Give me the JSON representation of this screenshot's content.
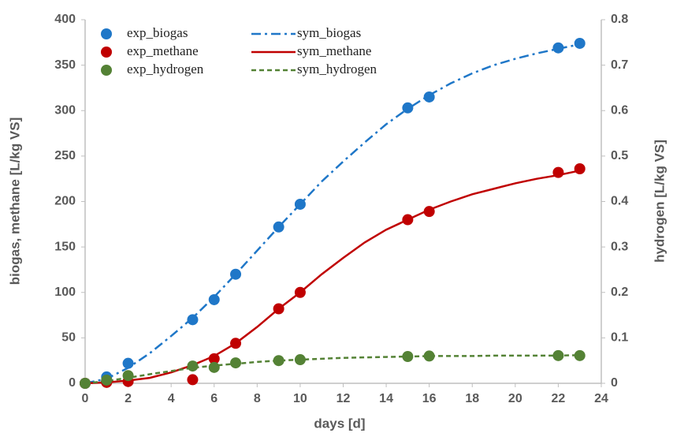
{
  "chart_data": {
    "type": "line",
    "x_label": "days [d]",
    "y_label": "biogas, methane [L/kg VS]",
    "y2_label": "hydrogen [L/kg VS]",
    "xlim": [
      0,
      24
    ],
    "xticks": [
      0,
      2,
      4,
      6,
      8,
      10,
      12,
      14,
      16,
      18,
      20,
      22,
      24
    ],
    "ylim": [
      0,
      400
    ],
    "yticks": [
      0,
      50,
      100,
      150,
      200,
      250,
      300,
      350,
      400
    ],
    "y2lim": [
      0,
      0.8
    ],
    "y2ticks": [
      0,
      0.1,
      0.2,
      0.3,
      0.4,
      0.5,
      0.6,
      0.7,
      0.8
    ],
    "legend": "upper left",
    "series": [
      {
        "name": "exp_biogas",
        "type": "scatter",
        "color": "#1f77c8",
        "x": [
          0,
          1,
          2,
          5,
          6,
          7,
          9,
          10,
          15,
          16,
          22,
          23
        ],
        "values": [
          0,
          7,
          22,
          70,
          92,
          120,
          172,
          197,
          303,
          315,
          369,
          374
        ]
      },
      {
        "name": "exp_methane",
        "type": "scatter",
        "color": "#c00000",
        "x": [
          0,
          1,
          2,
          5,
          6,
          7,
          9,
          10,
          15,
          16,
          22,
          23
        ],
        "values": [
          0,
          1,
          2,
          4,
          27,
          44,
          82,
          100,
          180,
          189,
          232,
          236
        ]
      },
      {
        "name": "exp_hydrogen",
        "type": "scatter",
        "color": "#548235",
        "axis": "y2",
        "x": [
          0,
          1,
          2,
          5,
          6,
          7,
          9,
          10,
          15,
          16,
          22,
          23
        ],
        "values": [
          0,
          0.007,
          0.017,
          0.038,
          0.035,
          0.045,
          0.05,
          0.052,
          0.059,
          0.06,
          0.061,
          0.061
        ]
      },
      {
        "name": "sym_biogas",
        "type": "line",
        "style": "dash-dot",
        "color": "#1f77c8",
        "x": [
          0,
          1,
          2,
          3,
          4,
          5,
          6,
          7,
          8,
          9,
          10,
          11,
          12,
          13,
          14,
          15,
          16,
          17,
          18,
          19,
          20,
          21,
          22,
          23
        ],
        "values": [
          0,
          5,
          17,
          33,
          52,
          72,
          95,
          120,
          146,
          172,
          197,
          222,
          244,
          265,
          285,
          302,
          317,
          330,
          341,
          350,
          357,
          363,
          368,
          373
        ]
      },
      {
        "name": "sym_methane",
        "type": "line",
        "style": "solid",
        "color": "#c00000",
        "x": [
          0,
          1,
          2,
          3,
          4,
          5,
          6,
          7,
          8,
          9,
          10,
          11,
          12,
          13,
          14,
          15,
          16,
          17,
          18,
          19,
          20,
          21,
          22,
          23
        ],
        "values": [
          0,
          1,
          3,
          6,
          12,
          20,
          30,
          44,
          62,
          82,
          100,
          120,
          138,
          155,
          169,
          180,
          191,
          200,
          208,
          214,
          220,
          225,
          229,
          234
        ]
      },
      {
        "name": "sym_hydrogen",
        "type": "line",
        "style": "dashed",
        "color": "#548235",
        "axis": "y2",
        "x": [
          0,
          1,
          2,
          3,
          4,
          5,
          6,
          7,
          8,
          9,
          10,
          11,
          12,
          13,
          14,
          15,
          16,
          17,
          18,
          19,
          20,
          21,
          22,
          23
        ],
        "values": [
          0,
          0.005,
          0.012,
          0.02,
          0.027,
          0.034,
          0.039,
          0.043,
          0.047,
          0.05,
          0.052,
          0.054,
          0.056,
          0.057,
          0.058,
          0.059,
          0.06,
          0.06,
          0.06,
          0.061,
          0.061,
          0.061,
          0.061,
          0.062
        ]
      }
    ]
  }
}
